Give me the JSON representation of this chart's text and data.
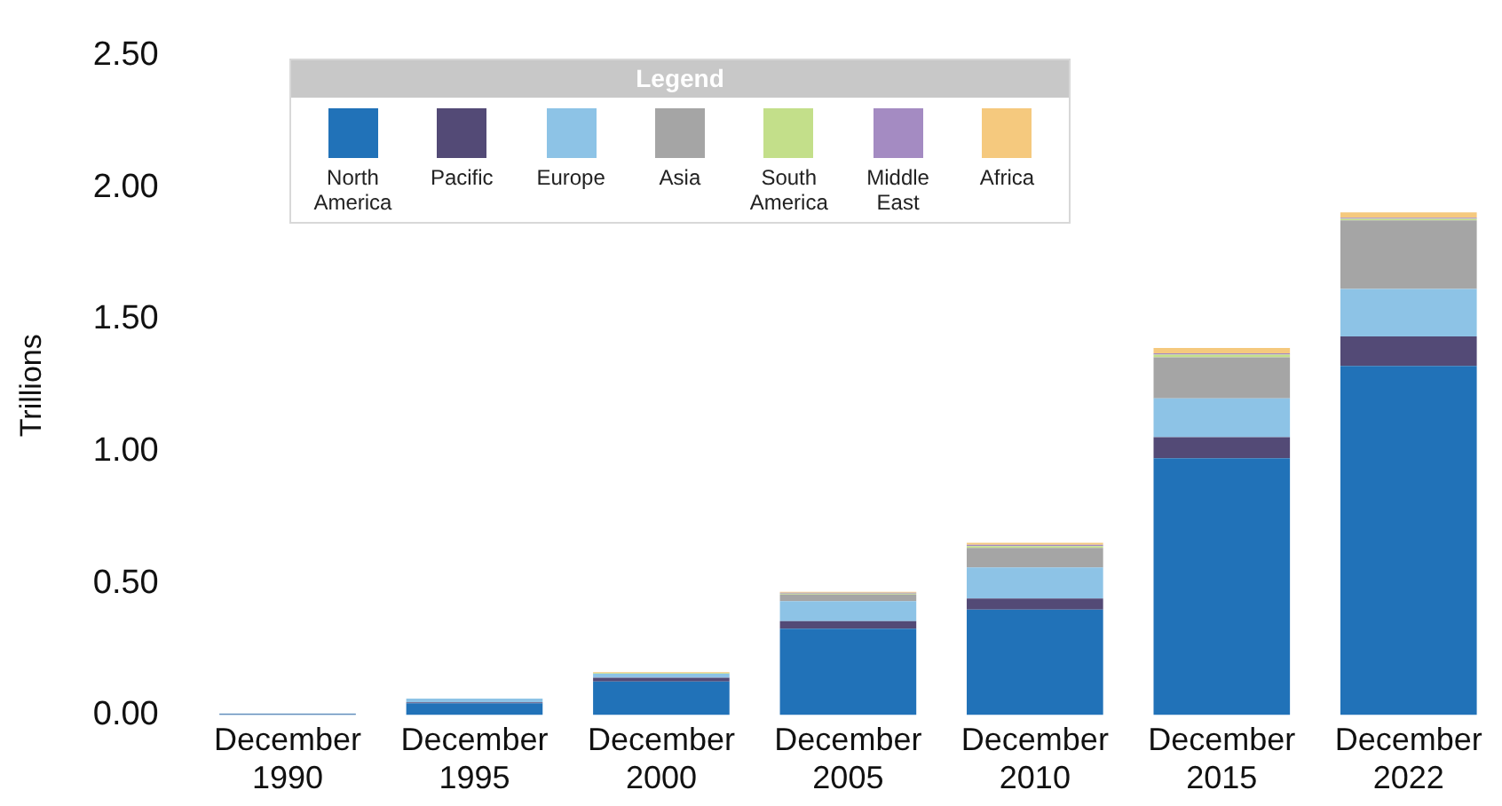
{
  "chart_data": {
    "type": "bar",
    "stacked": true,
    "ylabel": "Trillions",
    "legend_title": "Legend",
    "legend": "top",
    "grid": false,
    "categories": [
      "December 1990",
      "December 1995",
      "December 2000",
      "December 2005",
      "December 2010",
      "December 2015",
      "December 2022"
    ],
    "ylim": [
      0,
      2.5
    ],
    "yticks": [
      {
        "value": 0,
        "label": "0.00"
      },
      {
        "value": 0.5,
        "label": "0.50"
      },
      {
        "value": 1,
        "label": "1.00"
      },
      {
        "value": 1.5,
        "label": "1.50"
      },
      {
        "value": 2,
        "label": "2.00"
      },
      {
        "value": 2.5,
        "label": "2.50"
      }
    ],
    "series": [
      {
        "name": "North America",
        "color": "#2172b8",
        "values": [
          0.004,
          0.045,
          0.127,
          0.328,
          0.4,
          0.974,
          1.324
        ]
      },
      {
        "name": "Pacific",
        "color": "#534a76",
        "values": [
          0.001,
          0.003,
          0.015,
          0.028,
          0.042,
          0.08,
          0.112
        ]
      },
      {
        "name": "Europe",
        "color": "#8dc3e6",
        "values": [
          0.001,
          0.015,
          0.015,
          0.076,
          0.118,
          0.147,
          0.18
        ]
      },
      {
        "name": "Asia",
        "color": "#a5a5a5",
        "values": [
          0,
          null,
          null,
          0.025,
          0.074,
          0.156,
          0.26
        ]
      },
      {
        "name": "South America",
        "color": "#c3df8a",
        "values": [
          0,
          0,
          0.002,
          0.004,
          0.007,
          0.01,
          0.006
        ]
      },
      {
        "name": "Middle East",
        "color": "#a48bc2",
        "values": [
          0,
          0,
          0.001,
          0.003,
          0.005,
          0.005,
          0.004
        ]
      },
      {
        "name": "Africa",
        "color": "#f5c97e",
        "values": [
          0,
          0,
          0.003,
          0.003,
          0.007,
          0.02,
          0.02
        ]
      }
    ]
  }
}
